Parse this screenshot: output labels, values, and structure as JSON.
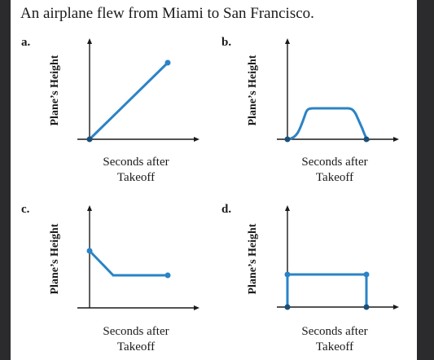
{
  "prompt": "An airplane flew from Miami to San Francisco.",
  "colors": {
    "curve": "#2b83c6",
    "axis": "#1a1a1a",
    "background_dark": "#2b2b2d"
  },
  "panels": [
    {
      "id": "a",
      "label": "a.",
      "ylabel": "Plane’s Height",
      "xlabel_line1": "Seconds after",
      "xlabel_line2": "Takeoff",
      "shape": "steady linear increase from ground to a high point"
    },
    {
      "id": "b",
      "label": "b.",
      "ylabel": "Plane’s Height",
      "xlabel_line1": "Seconds after",
      "xlabel_line2": "Takeoff",
      "shape": "rise, level flight, descend back to ground"
    },
    {
      "id": "c",
      "label": "c.",
      "ylabel": "Plane’s Height",
      "xlabel_line1": "Seconds after",
      "xlabel_line2": "Takeoff",
      "shape": "starts high, decreases, then stays constant"
    },
    {
      "id": "d",
      "label": "d.",
      "ylabel": "Plane’s Height",
      "xlabel_line1": "Seconds after",
      "xlabel_line2": "Takeoff",
      "shape": "vertical jump up, constant height, vertical drop"
    }
  ]
}
